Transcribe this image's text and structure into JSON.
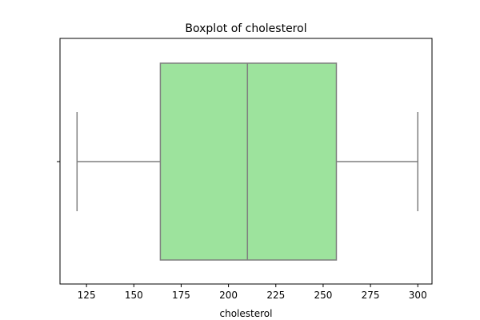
{
  "chart_data": {
    "type": "boxplot",
    "title": "Boxplot of cholesterol",
    "xlabel": "cholesterol",
    "ylabel": "",
    "xlim": [
      111,
      307.5
    ],
    "x_ticks": [
      125,
      150,
      175,
      200,
      225,
      250,
      275,
      300
    ],
    "x_tick_labels": [
      "125",
      "150",
      "175",
      "200",
      "225",
      "250",
      "275",
      "300"
    ],
    "orientation": "horizontal",
    "grid": false,
    "box": {
      "whisker_low": 120,
      "q1": 164,
      "median": 210,
      "q3": 257,
      "whisker_high": 300
    },
    "colors": {
      "box_fill": "#9de39d",
      "line": "#7f7f7f",
      "axis": "#000000"
    }
  }
}
